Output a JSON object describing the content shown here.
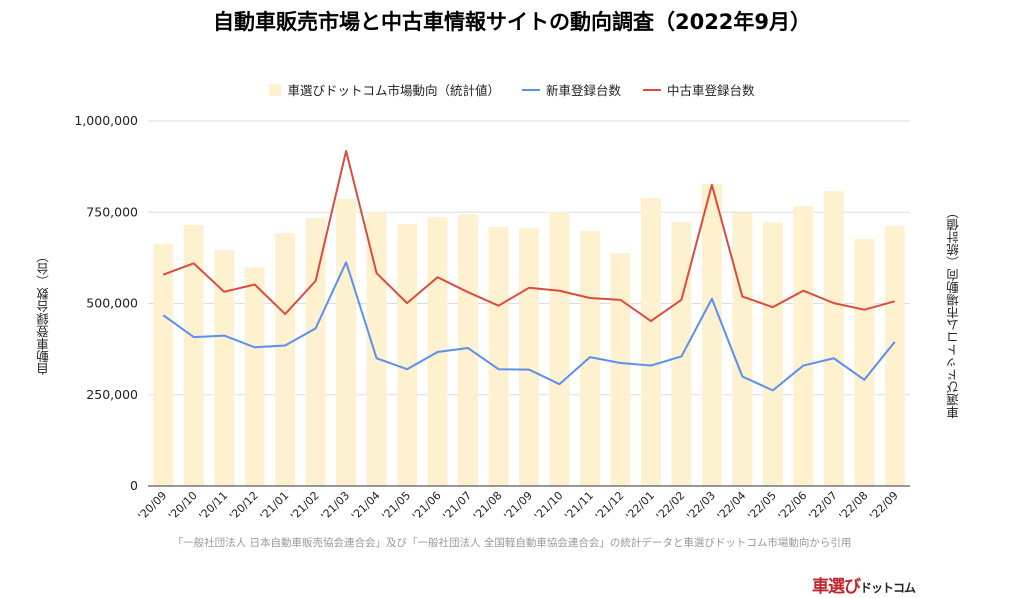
{
  "chart_data": {
    "type": "bar+line",
    "title": "自動車販売市場と中古車情報サイトの動向調査（2022年9月）",
    "ylabel": "自動車登録台数（台）",
    "ylabel_right": "車選びドットコム市場動向（統計値）",
    "ylim": [
      0,
      1000000
    ],
    "yticks": [
      "1,000,000",
      "750,000",
      "500,000",
      "250,000",
      "0"
    ],
    "ytick_values": [
      1000000,
      750000,
      500000,
      250000,
      0
    ],
    "grid": true,
    "legend_position": "top",
    "categories": [
      "'20/09",
      "'20/10",
      "'20/11",
      "'20/12",
      "'21/01",
      "'21/02",
      "'21/03",
      "'21/04",
      "'21/05",
      "'21/06",
      "'21/07",
      "'21/08",
      "'21/09",
      "'21/10",
      "'21/11",
      "'21/12",
      "'22/01",
      "'22/02",
      "'22/03",
      "'22/04",
      "'22/05",
      "'22/06",
      "'22/07",
      "'22/08",
      "'22/09"
    ],
    "series": [
      {
        "name": "車選びドットコム市場動向（統計値）",
        "kind": "bar",
        "color": "#fdf1cf",
        "values": [
          663000,
          715000,
          647000,
          600000,
          693000,
          734000,
          786000,
          751000,
          718000,
          737000,
          745000,
          710000,
          707000,
          751000,
          699000,
          638000,
          789000,
          723000,
          827000,
          748000,
          723000,
          767000,
          808000,
          677000,
          712000
        ]
      },
      {
        "name": "新車登録台数",
        "kind": "line",
        "color": "#5b8ff0",
        "values": [
          468000,
          408000,
          412000,
          380000,
          385000,
          432000,
          613000,
          350000,
          320000,
          367000,
          378000,
          320000,
          319000,
          279000,
          353000,
          337000,
          330000,
          355000,
          513000,
          300000,
          262000,
          330000,
          350000,
          291000,
          395000
        ]
      },
      {
        "name": "中古車登録台数",
        "kind": "line",
        "color": "#dc4b3c",
        "values": [
          579000,
          610000,
          532000,
          552000,
          471000,
          562000,
          918000,
          583000,
          501000,
          572000,
          531000,
          494000,
          543000,
          535000,
          515000,
          510000,
          452000,
          510000,
          825000,
          519000,
          490000,
          535000,
          501000,
          483000,
          506000
        ]
      }
    ]
  },
  "source_note": "「一般社団法人 日本自動車販売協会連合会」及び「一般社団法人 全国軽自動車協会連合会」の統計データと車選びドットコム市場動向から引用",
  "logo": {
    "main": "車選び",
    "sub": "ドットコム"
  }
}
